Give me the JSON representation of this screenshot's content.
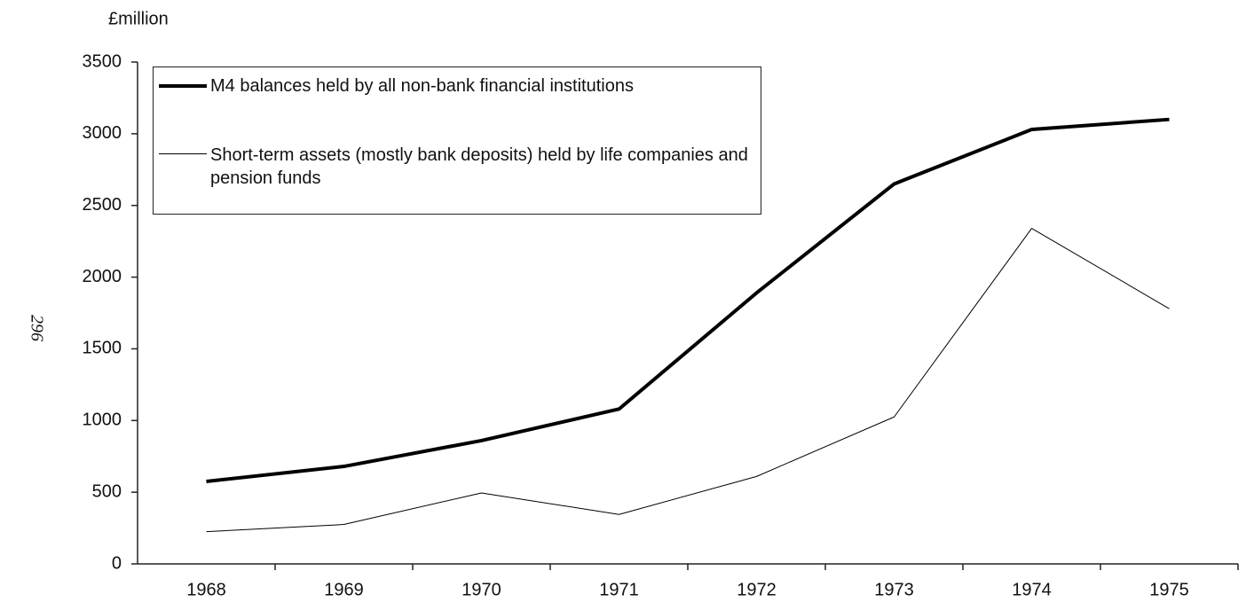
{
  "chart_data": {
    "type": "line",
    "y_label": "£million",
    "page_number": "296",
    "categories": [
      "1968",
      "1969",
      "1970",
      "1971",
      "1972",
      "1973",
      "1974",
      "1975"
    ],
    "series": [
      {
        "name": "M4 balances held by all non-bank financial institutions",
        "color": "#000000",
        "width": 4,
        "values": [
          575,
          680,
          860,
          1080,
          1890,
          2650,
          3030,
          3100
        ]
      },
      {
        "name": "Short-term assets (mostly bank deposits) held by life companies and pension funds",
        "color": "#000000",
        "width": 1,
        "values": [
          225,
          275,
          495,
          345,
          610,
          1025,
          2340,
          1780
        ]
      }
    ],
    "ylim": [
      0,
      3500
    ],
    "yticks": [
      0,
      500,
      1000,
      1500,
      2000,
      2500,
      3000,
      3500
    ],
    "grid": false,
    "legend": "upper left"
  }
}
